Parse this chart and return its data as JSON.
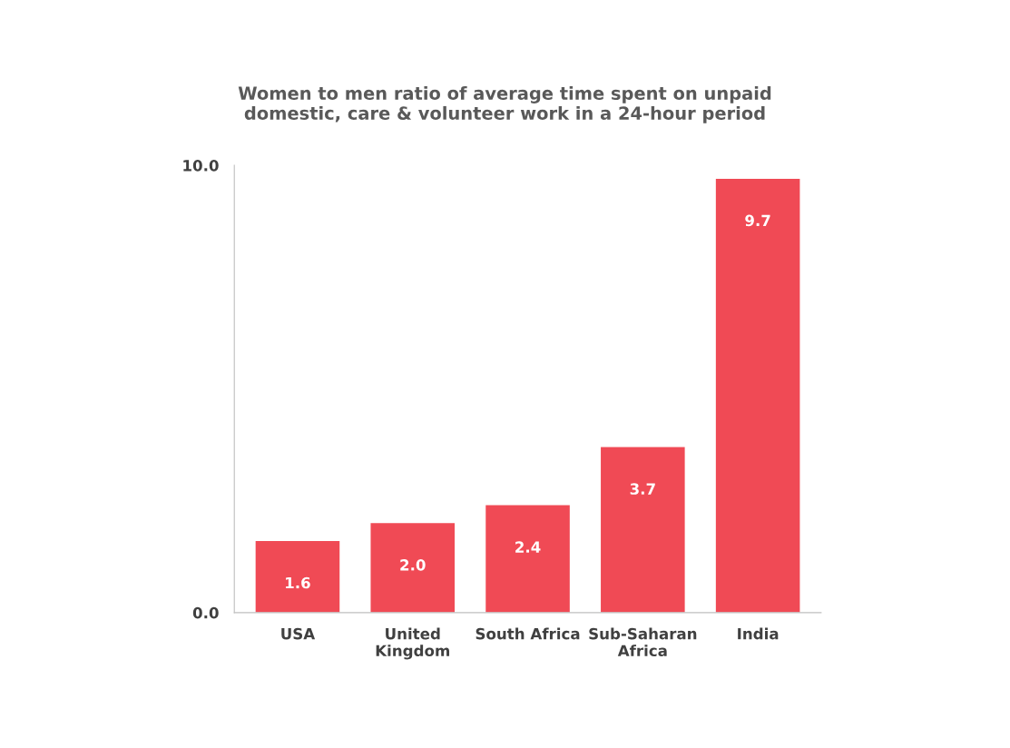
{
  "chart_data": {
    "type": "bar",
    "title": "Women to men ratio of average time spent on unpaid\ndomestic, care & volunteer work in a 24-hour period",
    "categories": [
      "USA",
      "United\nKingdom",
      "South Africa",
      "Sub-Saharan\nAfrica",
      "India"
    ],
    "values": [
      1.6,
      2.0,
      2.4,
      3.7,
      9.7
    ],
    "value_labels": [
      "1.6",
      "2.0",
      "2.4",
      "3.7",
      "9.7"
    ],
    "color": "#f04a55",
    "ylim": [
      0,
      10
    ],
    "yticks": [
      {
        "value": 0,
        "label": "0.0"
      },
      {
        "value": 10,
        "label": "10.0"
      }
    ],
    "grid": false
  }
}
